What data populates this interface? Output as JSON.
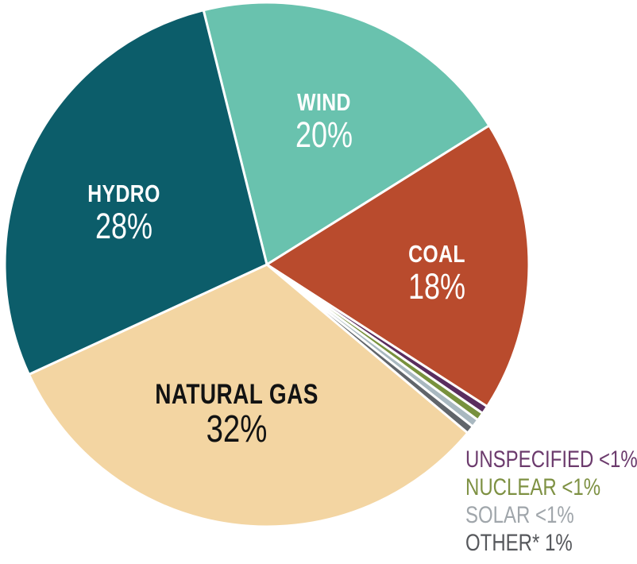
{
  "chart_data": {
    "type": "pie",
    "title": "",
    "legend_position": "bottom-right",
    "geometry": {
      "start_angle_deg_from_top": -14,
      "direction": "clockwise"
    },
    "slices": [
      {
        "name": "wind",
        "label": "WIND",
        "pct": "20%",
        "value": 20,
        "color": "#69c2ae",
        "label_color": "#ffffff"
      },
      {
        "name": "coal",
        "label": "COAL",
        "pct": "18%",
        "value": 18,
        "color": "#b94b2d",
        "label_color": "#ffffff"
      },
      {
        "name": "unspecified",
        "label": "UNSPECIFIED",
        "pct": "<1%",
        "value": 0.5,
        "color": "#5a2d5e"
      },
      {
        "name": "nuclear",
        "label": "NUCLEAR",
        "pct": "<1%",
        "value": 0.5,
        "color": "#78913d"
      },
      {
        "name": "solar",
        "label": "SOLAR",
        "pct": "<1%",
        "value": 0.5,
        "color": "#a9b8c0"
      },
      {
        "name": "other",
        "label": "OTHER*",
        "pct": "1%",
        "value": 0.5,
        "color": "#61656a"
      },
      {
        "name": "natural_gas",
        "label": "NATURAL GAS",
        "pct": "32%",
        "value": 32,
        "color": "#f3d5a2",
        "label_color": "#121212"
      },
      {
        "name": "hydro",
        "label": "HYDRO",
        "pct": "28%",
        "value": 28,
        "color": "#0c5d6a",
        "label_color": "#ffffff"
      }
    ],
    "legend": [
      {
        "label": "UNSPECIFIED <1%",
        "color": "#6c3b6d"
      },
      {
        "label": "NUCLEAR <1%",
        "color": "#7e9143"
      },
      {
        "label": "SOLAR <1%",
        "color": "#a0a6ab"
      },
      {
        "label": "OTHER* 1%",
        "color": "#56585c"
      }
    ],
    "stroke_color": "#ffffff"
  }
}
